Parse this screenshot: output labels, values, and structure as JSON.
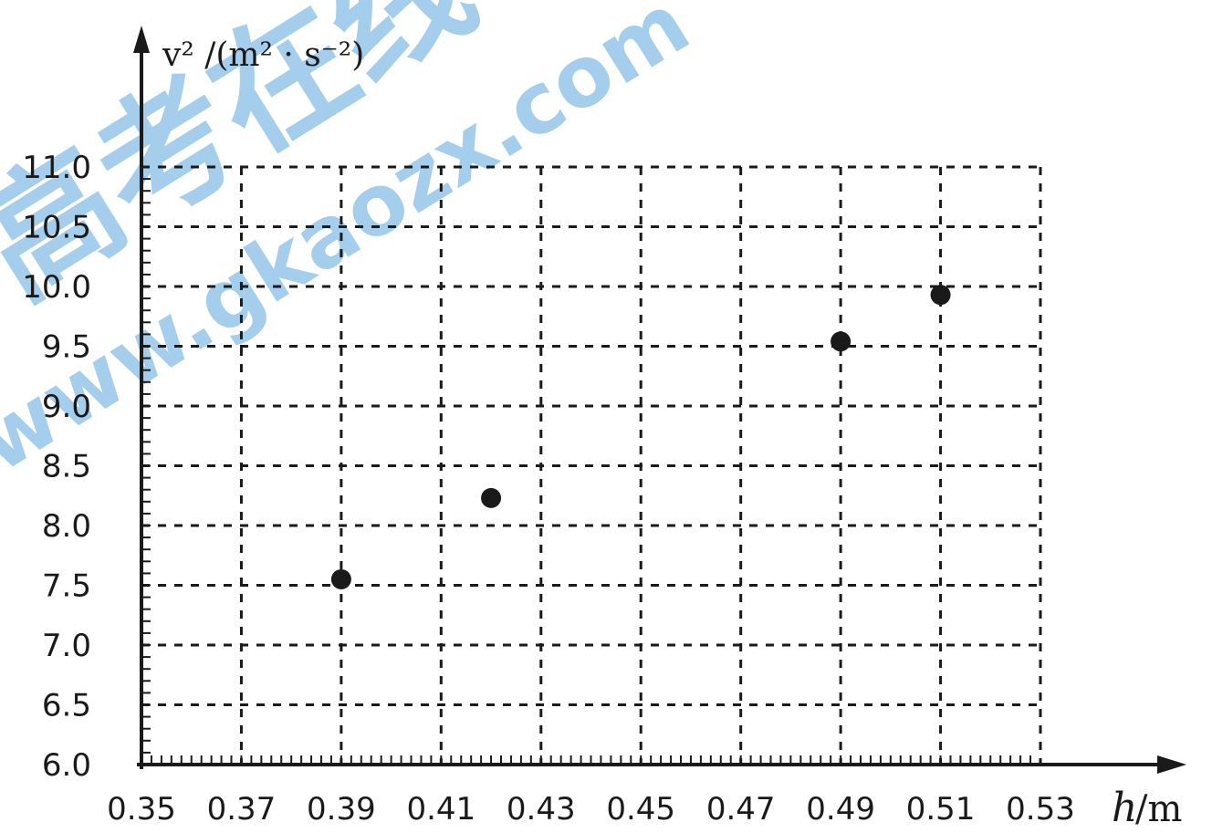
{
  "chart_data": {
    "type": "scatter",
    "title": "",
    "xlabel_var": "h",
    "xlabel_unit": "/m",
    "ylabel": "v² /(m² · s⁻²)",
    "xlim": [
      0.35,
      0.53
    ],
    "ylim": [
      6.0,
      11.0
    ],
    "x_ticks": [
      "0.35",
      "0.37",
      "0.39",
      "0.41",
      "0.43",
      "0.45",
      "0.47",
      "0.49",
      "0.51",
      "0.53"
    ],
    "y_ticks": [
      "6.0",
      "6.5",
      "7.0",
      "7.5",
      "8.0",
      "8.5",
      "9.0",
      "9.5",
      "10.0",
      "10.5",
      "11.0"
    ],
    "grid": "dashed",
    "series": [
      {
        "points": [
          {
            "x": 0.39,
            "y": 7.55
          },
          {
            "x": 0.42,
            "y": 8.23
          },
          {
            "x": 0.49,
            "y": 9.54
          },
          {
            "x": 0.51,
            "y": 9.93
          }
        ]
      }
    ],
    "point_color": "#1a1a1a",
    "grid_color": "#1a1a1a"
  },
  "watermark": {
    "chinese": "高考在线",
    "url": "www.gkaozx.com",
    "color": "#5aa7de"
  }
}
